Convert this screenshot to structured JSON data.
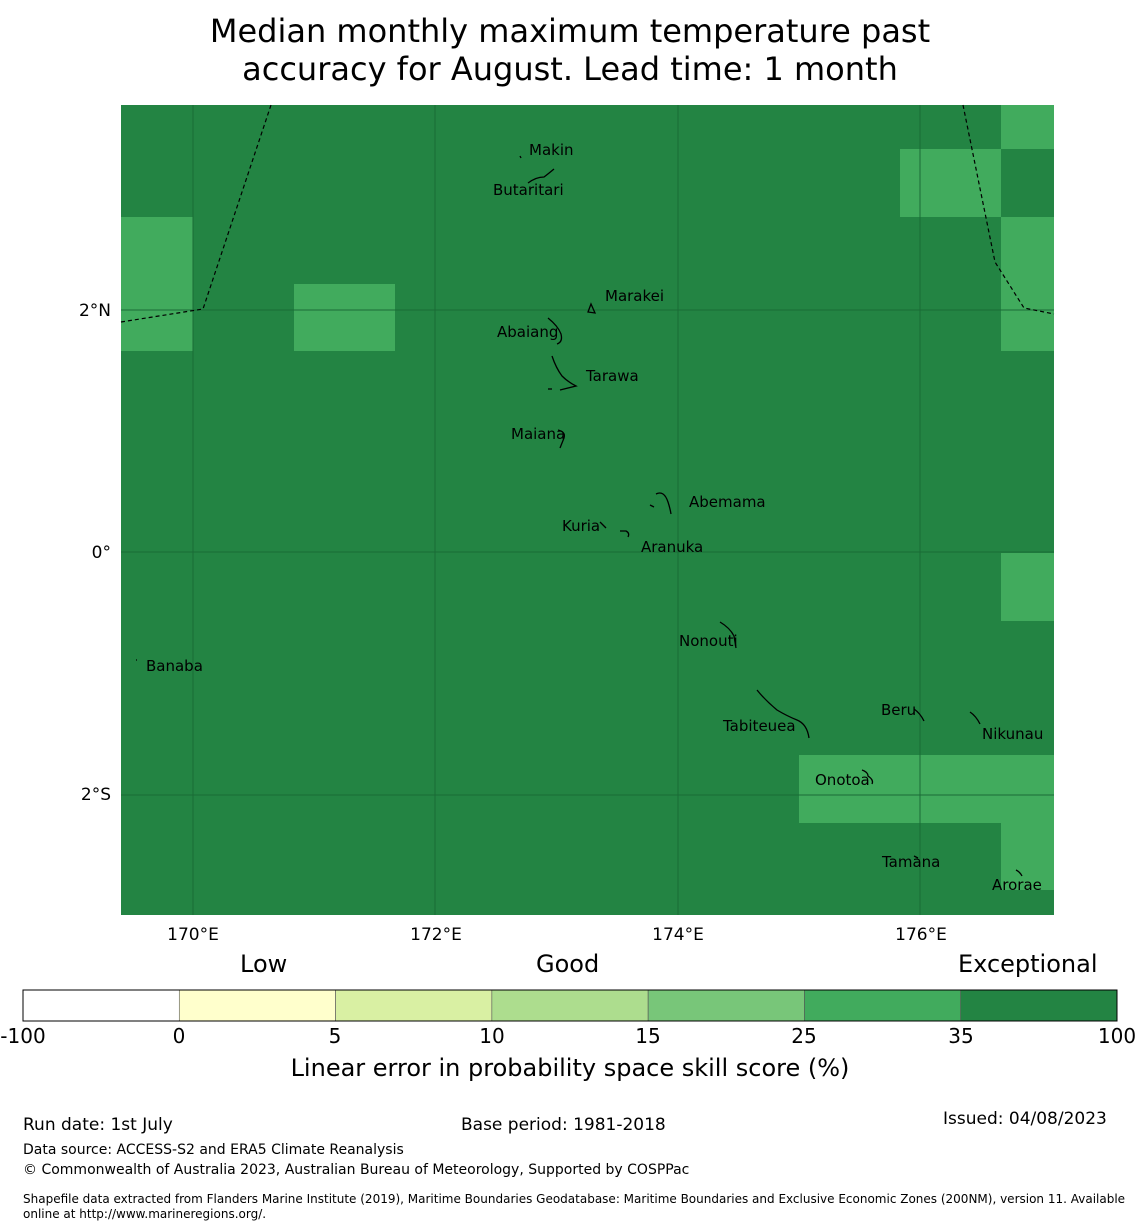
{
  "title_line1": "Median monthly maximum temperature past",
  "title_line2": "accuracy for August. Lead time: 1 month",
  "colors": {
    "exceptional_35_100": "#238443",
    "good_25_35": "#41ab5d",
    "water_grid": "#1a6b36"
  },
  "map": {
    "lon_ticks": [
      "170°E",
      "172°E",
      "174°E",
      "176°E"
    ],
    "lat_ticks": [
      "2°N",
      "0°",
      "2°S"
    ],
    "islands": [
      {
        "name": "Makin"
      },
      {
        "name": "Butaritari"
      },
      {
        "name": "Marakei"
      },
      {
        "name": "Abaiang"
      },
      {
        "name": "Tarawa"
      },
      {
        "name": "Maiana"
      },
      {
        "name": "Abemama"
      },
      {
        "name": "Kuria"
      },
      {
        "name": "Aranuka"
      },
      {
        "name": "Nonouti"
      },
      {
        "name": "Banaba"
      },
      {
        "name": "Tabiteuea"
      },
      {
        "name": "Beru"
      },
      {
        "name": "Nikunau"
      },
      {
        "name": "Onotoa"
      },
      {
        "name": "Tamana"
      },
      {
        "name": "Arorae"
      }
    ]
  },
  "legend": {
    "categories": [
      "Low",
      "Good",
      "Exceptional"
    ],
    "ticks": [
      "-100",
      "0",
      "5",
      "10",
      "15",
      "25",
      "35",
      "100"
    ],
    "colors": [
      "#ffffff",
      "#ffffcc",
      "#d9f0a3",
      "#addd8e",
      "#78c679",
      "#41ab5d",
      "#238443"
    ],
    "label": "Linear error in probability space skill score (%)"
  },
  "footer": {
    "run_date": "Run date: 1st July",
    "base_period": "Base period: 1981-2018",
    "issued": "Issued: 04/08/2023",
    "data_source": "Data source: ACCESS-S2 and ERA5 Climate Reanalysis",
    "copyright": "© Commonwealth of Australia 2023, Australian Bureau of Meteorology, Supported by COSPPac",
    "shapefile_line1": "Shapefile data extracted from Flanders Marine Institute (2019), Maritime Boundaries Geodatabase: Maritime Boundaries and Exclusive Economic Zones (200NM), version 11. Available",
    "shapefile_line2": "online at http://www.marineregions.org/."
  }
}
